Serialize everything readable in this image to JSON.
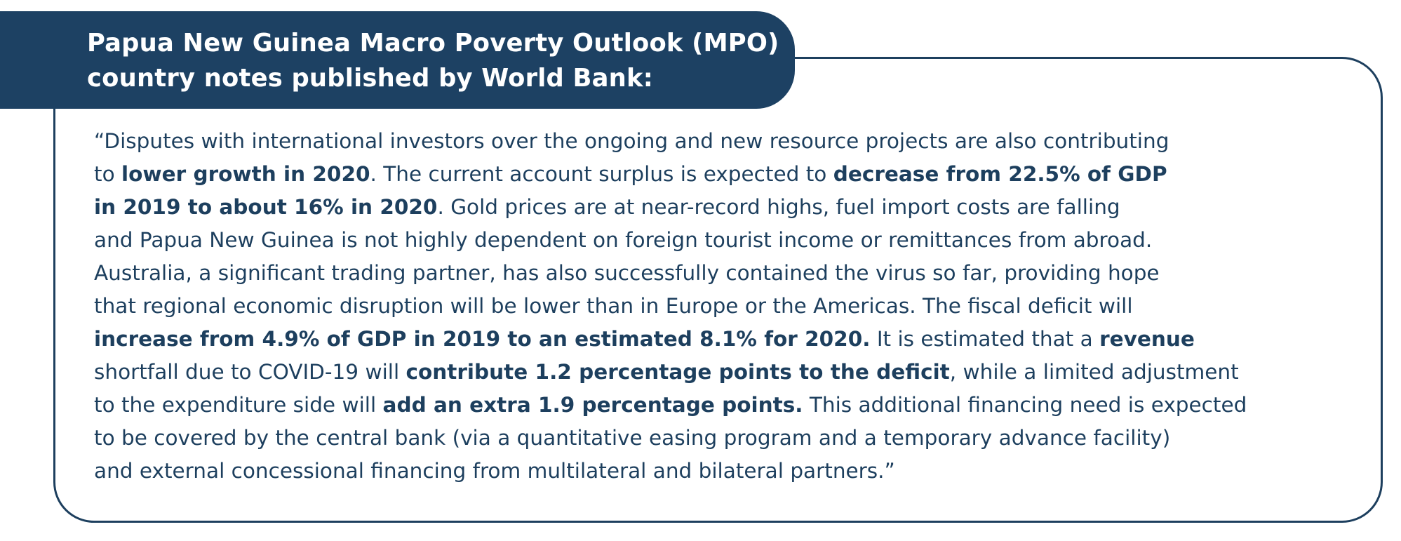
{
  "header": {
    "line1": "Papua New Guinea Macro Poverty Outlook (MPO)",
    "line2": "country notes published by World Bank:"
  },
  "quote": {
    "lines": [
      [
        {
          "text": "“Disputes with international investors over the ongoing and new resource projects are also contributing",
          "bold": false
        }
      ],
      [
        {
          "text": "to ",
          "bold": false
        },
        {
          "text": "lower growth in 2020",
          "bold": true
        },
        {
          "text": ". The current account surplus is expected to ",
          "bold": false
        },
        {
          "text": "decrease from 22.5% of GDP",
          "bold": true
        }
      ],
      [
        {
          "text": "in 2019 to about 16% in 2020",
          "bold": true
        },
        {
          "text": ". Gold prices are at near-record highs, fuel import costs are falling",
          "bold": false
        }
      ],
      [
        {
          "text": "and Papua New Guinea is not highly dependent on foreign tourist income or remittances from abroad.",
          "bold": false
        }
      ],
      [
        {
          "text": "Australia, a significant trading partner, has also successfully contained the virus so far, providing hope",
          "bold": false
        }
      ],
      [
        {
          "text": "that regional economic disruption will be lower than in Europe or the Americas. The fiscal deficit will",
          "bold": false
        }
      ],
      [
        {
          "text": "increase from 4.9% of GDP in 2019 to an estimated 8.1% for 2020.",
          "bold": true
        },
        {
          "text": " It is estimated that a ",
          "bold": false
        },
        {
          "text": "revenue",
          "bold": true
        }
      ],
      [
        {
          "text": "shortfall due to COVID-19 will ",
          "bold": false
        },
        {
          "text": "contribute 1.2 percentage points to the deficit",
          "bold": true
        },
        {
          "text": ", while a limited adjustment",
          "bold": false
        }
      ],
      [
        {
          "text": "to the expenditure side will ",
          "bold": false
        },
        {
          "text": "add an extra 1.9 percentage points.",
          "bold": true
        },
        {
          "text": " This additional financing need is expected",
          "bold": false
        }
      ],
      [
        {
          "text": "to be covered by the central bank (via a quantitative easing program and a temporary advance facility)",
          "bold": false
        }
      ],
      [
        {
          "text": "and external concessional financing from multilateral and bilateral partners.”",
          "bold": false
        }
      ]
    ]
  }
}
